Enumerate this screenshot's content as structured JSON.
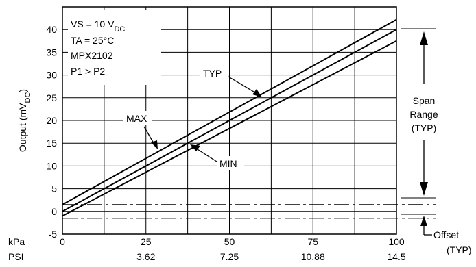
{
  "chart_data": {
    "type": "line",
    "ylabel": "Output (mV",
    "ylabel_sub": "DC",
    "ylabel_close": ")",
    "x_unit_primary": "kPa",
    "x_unit_secondary": "PSI",
    "xlim": [
      0,
      100
    ],
    "ylim": [
      -5,
      45
    ],
    "x_ticks_kpa": [
      0,
      25,
      50,
      75,
      100
    ],
    "x_tick_labels_kpa": [
      "0",
      "25",
      "50",
      "75",
      "100"
    ],
    "x_tick_labels_psi": [
      "",
      "3.62",
      "7.25",
      "10.88",
      "14.5"
    ],
    "y_ticks": [
      -5,
      0,
      5,
      10,
      15,
      20,
      25,
      30,
      35,
      40
    ],
    "y_tick_labels": [
      "-5",
      "0",
      "5",
      "10",
      "15",
      "20",
      "25",
      "30",
      "35",
      "40"
    ],
    "grid": true,
    "series": [
      {
        "name": "MAX",
        "x": [
          0,
          100
        ],
        "y": [
          1.5,
          42.2
        ]
      },
      {
        "name": "TYP",
        "x": [
          0,
          100
        ],
        "y": [
          0.0,
          40.0
        ]
      },
      {
        "name": "MIN",
        "x": [
          0,
          100
        ],
        "y": [
          -1.0,
          37.5
        ]
      }
    ],
    "offset_band": [
      -1.5,
      1.5
    ],
    "conditions": {
      "vs": "VS = 10 V",
      "vs_sub": "DC",
      "ta": "TA = 25°C",
      "part": "MPX2102",
      "pressure": "P1 > P2"
    },
    "annotations": {
      "span_line1": "Span",
      "span_line2": "Range",
      "span_line3": "(TYP)",
      "offset_line1": "Offset",
      "offset_line2": "(TYP)"
    }
  }
}
